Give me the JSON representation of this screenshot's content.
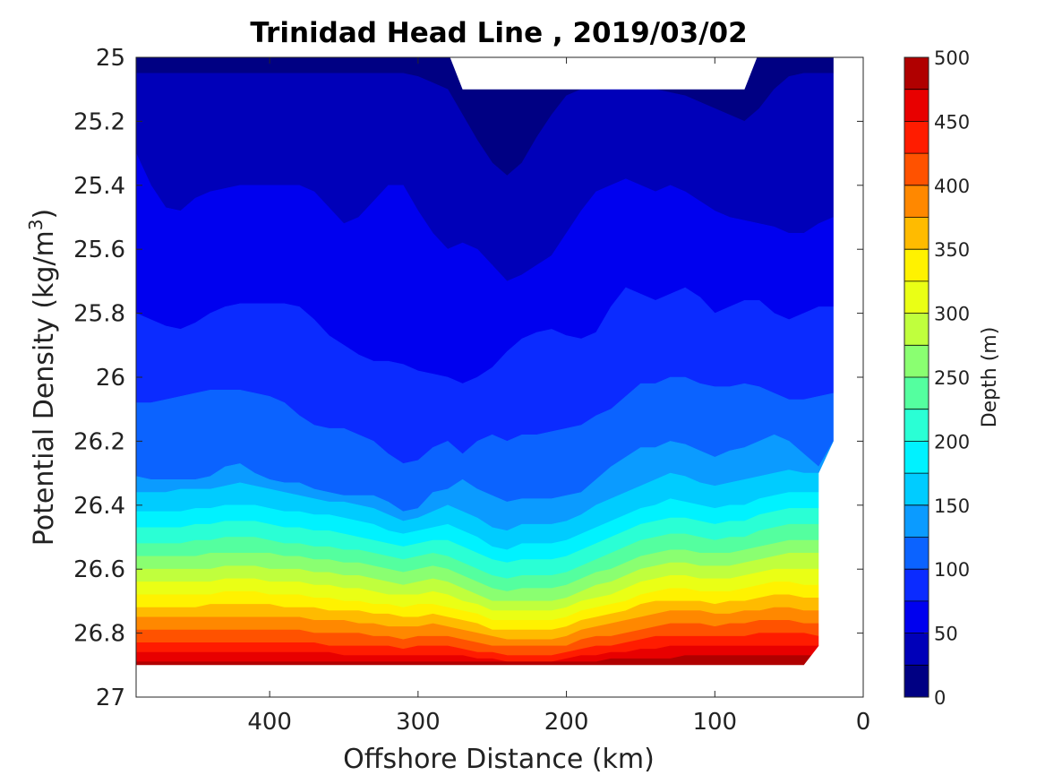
{
  "chart_data": {
    "type": "heatmap",
    "subtype": "filled-contour",
    "title": "Trinidad Head Line , 2019/03/02",
    "xlabel": "Offshore Distance (km)",
    "ylabel_main": "Potential Density (kg/m",
    "ylabel_sup": "3",
    "ylabel_close": ")",
    "colorbar_label": "Depth (m)",
    "x_reversed": true,
    "y_reversed": true,
    "xlim": [
      490,
      0
    ],
    "ylim": [
      25,
      27
    ],
    "x_ticks": [
      400,
      300,
      200,
      100,
      0
    ],
    "x_tick_labels": [
      "400",
      "300",
      "200",
      "100",
      "0"
    ],
    "y_ticks": [
      25,
      25.2,
      25.4,
      25.6,
      25.8,
      26,
      26.2,
      26.4,
      26.6,
      26.8,
      27
    ],
    "y_tick_labels": [
      "25",
      "25.2",
      "25.4",
      "25.6",
      "25.8",
      "26",
      "26.2",
      "26.4",
      "26.6",
      "26.8",
      "27"
    ],
    "colorbar_ticks": [
      0,
      50,
      100,
      150,
      200,
      250,
      300,
      350,
      400,
      450,
      500
    ],
    "colorbar_tick_labels": [
      "0",
      "50",
      "100",
      "150",
      "200",
      "250",
      "300",
      "350",
      "400",
      "450",
      "500"
    ],
    "contour_interval": 25,
    "colormap": "jet",
    "level_colors": [
      "#000083",
      "#0000b9",
      "#0000ef",
      "#0b2bff",
      "#0b63ff",
      "#0b9bff",
      "#00ccff",
      "#00f2ff",
      "#2affd5",
      "#54ff9f",
      "#8aff71",
      "#c0ff3d",
      "#eaff15",
      "#fff200",
      "#ffbb00",
      "#ff8800",
      "#ff5200",
      "#ff1c00",
      "#e80000",
      "#b00000"
    ],
    "x_stations": [
      490,
      480,
      470,
      460,
      450,
      440,
      430,
      420,
      410,
      400,
      390,
      380,
      370,
      360,
      350,
      340,
      330,
      320,
      310,
      300,
      290,
      280,
      270,
      260,
      250,
      240,
      230,
      220,
      210,
      200,
      190,
      180,
      170,
      160,
      150,
      140,
      130,
      120,
      110,
      100,
      90,
      80,
      70,
      60,
      50,
      40,
      30,
      20
    ],
    "depth_contours": [
      {
        "level": 25,
        "y": [
          25.05,
          25.05,
          25.05,
          25.05,
          25.05,
          25.05,
          25.05,
          25.05,
          25.05,
          25.05,
          25.05,
          25.05,
          25.05,
          25.05,
          25.05,
          25.05,
          25.05,
          25.05,
          25.05,
          25.06,
          25.08,
          25.1,
          25.18,
          25.26,
          25.33,
          25.37,
          25.33,
          25.25,
          25.18,
          25.12,
          25.1,
          25.1,
          25.1,
          25.1,
          25.1,
          25.1,
          25.11,
          25.12,
          25.14,
          25.16,
          25.18,
          25.2,
          25.16,
          25.1,
          25.06,
          25.05,
          25.05,
          25.05
        ]
      },
      {
        "level": 50,
        "y": [
          25.3,
          25.4,
          25.47,
          25.48,
          25.44,
          25.42,
          25.41,
          25.4,
          25.4,
          25.4,
          25.4,
          25.4,
          25.42,
          25.47,
          25.52,
          25.5,
          25.45,
          25.4,
          25.4,
          25.48,
          25.55,
          25.6,
          25.58,
          25.6,
          25.65,
          25.7,
          25.68,
          25.65,
          25.62,
          25.55,
          25.48,
          25.42,
          25.4,
          25.38,
          25.4,
          25.42,
          25.4,
          25.42,
          25.45,
          25.48,
          25.5,
          25.51,
          25.52,
          25.53,
          25.55,
          25.55,
          25.52,
          25.5
        ]
      },
      {
        "level": 75,
        "y": [
          25.8,
          25.82,
          25.84,
          25.85,
          25.83,
          25.8,
          25.78,
          25.77,
          25.77,
          25.77,
          25.77,
          25.78,
          25.82,
          25.87,
          25.9,
          25.93,
          25.95,
          25.95,
          25.96,
          25.98,
          25.99,
          26.0,
          26.02,
          26.0,
          25.97,
          25.92,
          25.88,
          25.86,
          25.85,
          25.87,
          25.88,
          25.86,
          25.78,
          25.72,
          25.74,
          25.76,
          25.74,
          25.72,
          25.75,
          25.8,
          25.78,
          25.76,
          25.76,
          25.8,
          25.82,
          25.8,
          25.78,
          25.78
        ]
      },
      {
        "level": 100,
        "y": [
          26.08,
          26.08,
          26.07,
          26.06,
          26.05,
          26.04,
          26.04,
          26.04,
          26.05,
          26.06,
          26.08,
          26.12,
          26.15,
          26.16,
          26.16,
          26.18,
          26.2,
          26.24,
          26.27,
          26.26,
          26.22,
          26.2,
          26.24,
          26.2,
          26.18,
          26.2,
          26.18,
          26.18,
          26.17,
          26.16,
          26.15,
          26.12,
          26.1,
          26.06,
          26.02,
          26.02,
          26.0,
          26.0,
          26.02,
          26.03,
          26.03,
          26.02,
          26.03,
          26.05,
          26.07,
          26.07,
          26.06,
          26.05
        ]
      },
      {
        "level": 125,
        "y": [
          26.31,
          26.32,
          26.32,
          26.32,
          26.32,
          26.31,
          26.28,
          26.27,
          26.3,
          26.32,
          26.33,
          26.33,
          26.35,
          26.36,
          26.37,
          26.37,
          26.37,
          26.39,
          26.42,
          26.41,
          26.36,
          26.35,
          26.32,
          26.35,
          26.37,
          26.39,
          26.38,
          26.38,
          26.38,
          26.37,
          26.36,
          26.32,
          26.28,
          26.25,
          26.22,
          26.22,
          26.2,
          26.21,
          26.23,
          26.25,
          26.23,
          26.22,
          26.2,
          26.18,
          26.2,
          26.24,
          26.28,
          26.2
        ]
      },
      {
        "level": 150,
        "y": [
          26.36,
          26.36,
          26.36,
          26.35,
          26.35,
          26.35,
          26.34,
          26.33,
          26.34,
          26.35,
          26.36,
          26.37,
          26.38,
          26.39,
          26.39,
          26.4,
          26.41,
          26.43,
          26.45,
          26.44,
          26.42,
          26.4,
          26.42,
          26.44,
          26.47,
          26.48,
          26.46,
          26.46,
          26.46,
          26.45,
          26.43,
          26.4,
          26.38,
          26.36,
          26.34,
          26.32,
          26.3,
          26.31,
          26.33,
          26.34,
          26.33,
          26.32,
          26.31,
          26.3,
          26.29,
          26.3,
          26.3,
          26.3
        ]
      },
      {
        "level": 175,
        "y": [
          26.42,
          26.42,
          26.42,
          26.42,
          26.41,
          26.41,
          26.4,
          26.4,
          26.4,
          26.41,
          26.42,
          26.42,
          26.43,
          26.43,
          26.44,
          26.45,
          26.46,
          26.48,
          26.49,
          26.48,
          26.47,
          26.46,
          26.48,
          26.5,
          26.53,
          26.54,
          26.52,
          26.52,
          26.52,
          26.51,
          26.49,
          26.47,
          26.45,
          26.43,
          26.41,
          26.4,
          26.38,
          26.39,
          26.4,
          26.41,
          26.4,
          26.4,
          26.38,
          26.37,
          26.36,
          26.36,
          26.36,
          26.36
        ]
      },
      {
        "level": 200,
        "y": [
          26.47,
          26.47,
          26.47,
          26.47,
          26.46,
          26.46,
          26.45,
          26.45,
          26.45,
          26.46,
          26.47,
          26.47,
          26.48,
          26.48,
          26.49,
          26.5,
          26.51,
          26.52,
          26.53,
          26.52,
          26.51,
          26.51,
          26.53,
          26.55,
          26.57,
          26.58,
          26.57,
          26.57,
          26.57,
          26.56,
          26.54,
          26.52,
          26.5,
          26.48,
          26.46,
          26.45,
          26.44,
          26.44,
          26.45,
          26.46,
          26.45,
          26.45,
          26.43,
          26.42,
          26.41,
          26.41,
          26.41,
          26.41
        ]
      },
      {
        "level": 225,
        "y": [
          26.52,
          26.52,
          26.52,
          26.52,
          26.51,
          26.51,
          26.5,
          26.5,
          26.5,
          26.51,
          26.52,
          26.52,
          26.53,
          26.53,
          26.54,
          26.54,
          26.55,
          26.56,
          26.57,
          26.56,
          26.55,
          26.56,
          26.58,
          26.6,
          26.62,
          26.63,
          26.62,
          26.62,
          26.62,
          26.61,
          26.59,
          26.57,
          26.55,
          26.53,
          26.51,
          26.5,
          26.49,
          26.49,
          26.5,
          26.51,
          26.5,
          26.5,
          26.48,
          26.47,
          26.46,
          26.46,
          26.46,
          26.46
        ]
      },
      {
        "level": 250,
        "y": [
          26.56,
          26.56,
          26.56,
          26.56,
          26.56,
          26.55,
          26.55,
          26.55,
          26.55,
          26.55,
          26.56,
          26.56,
          26.57,
          26.57,
          26.58,
          26.58,
          26.59,
          26.6,
          26.61,
          26.6,
          26.59,
          26.6,
          26.62,
          26.64,
          26.66,
          26.67,
          26.66,
          26.66,
          26.66,
          26.65,
          26.63,
          26.61,
          26.6,
          26.58,
          26.56,
          26.55,
          26.54,
          26.54,
          26.55,
          26.55,
          26.55,
          26.54,
          26.53,
          26.52,
          26.51,
          26.51,
          26.51,
          26.51
        ]
      },
      {
        "level": 275,
        "y": [
          26.6,
          26.6,
          26.6,
          26.6,
          26.6,
          26.6,
          26.59,
          26.59,
          26.59,
          26.6,
          26.6,
          26.6,
          26.61,
          26.61,
          26.62,
          26.62,
          26.63,
          26.64,
          26.65,
          26.64,
          26.63,
          26.64,
          26.66,
          26.68,
          26.7,
          26.7,
          26.7,
          26.7,
          26.7,
          26.69,
          26.67,
          26.65,
          26.64,
          26.62,
          26.6,
          26.59,
          26.58,
          26.58,
          26.59,
          26.59,
          26.59,
          26.58,
          26.57,
          26.56,
          26.55,
          26.55,
          26.55,
          26.55
        ]
      },
      {
        "level": 300,
        "y": [
          26.64,
          26.64,
          26.64,
          26.64,
          26.64,
          26.64,
          26.63,
          26.63,
          26.63,
          26.64,
          26.64,
          26.64,
          26.65,
          26.65,
          26.66,
          26.66,
          26.67,
          26.68,
          26.68,
          26.68,
          26.67,
          26.68,
          26.7,
          26.71,
          26.73,
          26.73,
          26.73,
          26.73,
          26.73,
          26.72,
          26.7,
          26.69,
          26.68,
          26.66,
          26.64,
          26.63,
          26.62,
          26.62,
          26.63,
          26.63,
          26.63,
          26.62,
          26.61,
          26.6,
          26.6,
          26.6,
          26.6,
          26.6
        ]
      },
      {
        "level": 325,
        "y": [
          26.68,
          26.68,
          26.68,
          26.68,
          26.68,
          26.68,
          26.67,
          26.67,
          26.67,
          26.68,
          26.68,
          26.68,
          26.69,
          26.69,
          26.7,
          26.7,
          26.71,
          26.71,
          26.72,
          26.71,
          26.71,
          26.72,
          26.73,
          26.74,
          26.76,
          26.76,
          26.76,
          26.76,
          26.76,
          26.75,
          26.73,
          26.72,
          26.71,
          26.7,
          26.68,
          26.67,
          26.66,
          26.66,
          26.67,
          26.67,
          26.67,
          26.66,
          26.65,
          26.64,
          26.64,
          26.65,
          26.65,
          26.65
        ]
      },
      {
        "level": 350,
        "y": [
          26.72,
          26.72,
          26.72,
          26.72,
          26.72,
          26.71,
          26.71,
          26.71,
          26.71,
          26.71,
          26.72,
          26.72,
          26.72,
          26.73,
          26.73,
          26.73,
          26.74,
          26.74,
          26.75,
          26.75,
          26.74,
          26.75,
          26.76,
          26.77,
          26.79,
          26.79,
          26.79,
          26.79,
          26.79,
          26.78,
          26.76,
          26.75,
          26.74,
          26.73,
          26.71,
          26.7,
          26.7,
          26.7,
          26.7,
          26.71,
          26.7,
          26.7,
          26.69,
          26.68,
          26.68,
          26.69,
          26.69,
          26.69
        ]
      },
      {
        "level": 375,
        "y": [
          26.75,
          26.75,
          26.75,
          26.75,
          26.75,
          26.75,
          26.75,
          26.75,
          26.75,
          26.75,
          26.75,
          26.75,
          26.76,
          26.76,
          26.76,
          26.77,
          26.77,
          26.78,
          26.78,
          26.78,
          26.77,
          26.78,
          26.79,
          26.8,
          26.81,
          26.82,
          26.82,
          26.82,
          26.82,
          26.81,
          26.79,
          26.78,
          26.77,
          26.76,
          26.75,
          26.74,
          26.73,
          26.73,
          26.73,
          26.74,
          26.74,
          26.73,
          26.73,
          26.72,
          26.72,
          26.73,
          26.73,
          26.73
        ]
      },
      {
        "level": 400,
        "y": [
          26.79,
          26.79,
          26.79,
          26.79,
          26.79,
          26.79,
          26.79,
          26.79,
          26.79,
          26.79,
          26.79,
          26.79,
          26.8,
          26.8,
          26.8,
          26.8,
          26.81,
          26.81,
          26.82,
          26.81,
          26.81,
          26.81,
          26.82,
          26.83,
          26.84,
          26.84,
          26.84,
          26.84,
          26.84,
          26.84,
          26.82,
          26.81,
          26.81,
          26.8,
          26.79,
          26.78,
          26.77,
          26.77,
          26.77,
          26.78,
          26.77,
          26.77,
          26.76,
          26.76,
          26.76,
          26.77,
          26.77,
          26.77
        ]
      },
      {
        "level": 425,
        "y": [
          26.83,
          26.83,
          26.83,
          26.83,
          26.83,
          26.83,
          26.83,
          26.83,
          26.83,
          26.83,
          26.83,
          26.83,
          26.83,
          26.84,
          26.84,
          26.84,
          26.84,
          26.84,
          26.85,
          26.84,
          26.84,
          26.84,
          26.85,
          26.86,
          26.86,
          26.87,
          26.87,
          26.87,
          26.87,
          26.86,
          26.85,
          26.84,
          26.84,
          26.83,
          26.82,
          26.81,
          26.81,
          26.81,
          26.81,
          26.81,
          26.81,
          26.81,
          26.8,
          26.8,
          26.8,
          26.8,
          26.81,
          26.81
        ]
      },
      {
        "level": 450,
        "y": [
          26.86,
          26.86,
          26.86,
          26.86,
          26.86,
          26.86,
          26.86,
          26.86,
          26.86,
          26.86,
          26.86,
          26.86,
          26.86,
          26.86,
          26.87,
          26.87,
          26.87,
          26.87,
          26.87,
          26.87,
          26.87,
          26.87,
          26.87,
          26.88,
          26.88,
          26.89,
          26.89,
          26.89,
          26.89,
          26.88,
          26.87,
          26.87,
          26.86,
          26.86,
          26.85,
          26.85,
          26.84,
          26.84,
          26.84,
          26.84,
          26.84,
          26.84,
          26.84,
          26.84,
          26.84,
          26.84,
          26.84,
          26.84
        ]
      },
      {
        "level": 475,
        "y": [
          26.89,
          26.89,
          26.89,
          26.89,
          26.89,
          26.89,
          26.89,
          26.89,
          26.89,
          26.89,
          26.89,
          26.89,
          26.89,
          26.89,
          26.89,
          26.89,
          26.89,
          26.89,
          26.89,
          26.89,
          26.89,
          26.89,
          26.89,
          26.89,
          26.89,
          26.89,
          26.89,
          26.89,
          26.89,
          26.89,
          26.89,
          26.89,
          26.88,
          26.88,
          26.88,
          26.88,
          26.88,
          26.87,
          26.87,
          26.87,
          26.87,
          26.87,
          26.87,
          26.87,
          26.87,
          26.87,
          26.87,
          26.87
        ]
      }
    ],
    "bottom_boundary": 26.9,
    "top_gap": {
      "x_range": [
        270,
        80
      ],
      "y": 25.1
    },
    "right_boundary": [
      [
        490,
        26.9
      ],
      [
        40,
        26.9
      ],
      [
        30,
        26.84
      ],
      [
        30,
        26.3
      ],
      [
        20,
        26.2
      ],
      [
        20,
        25.0
      ]
    ],
    "grid": false
  }
}
